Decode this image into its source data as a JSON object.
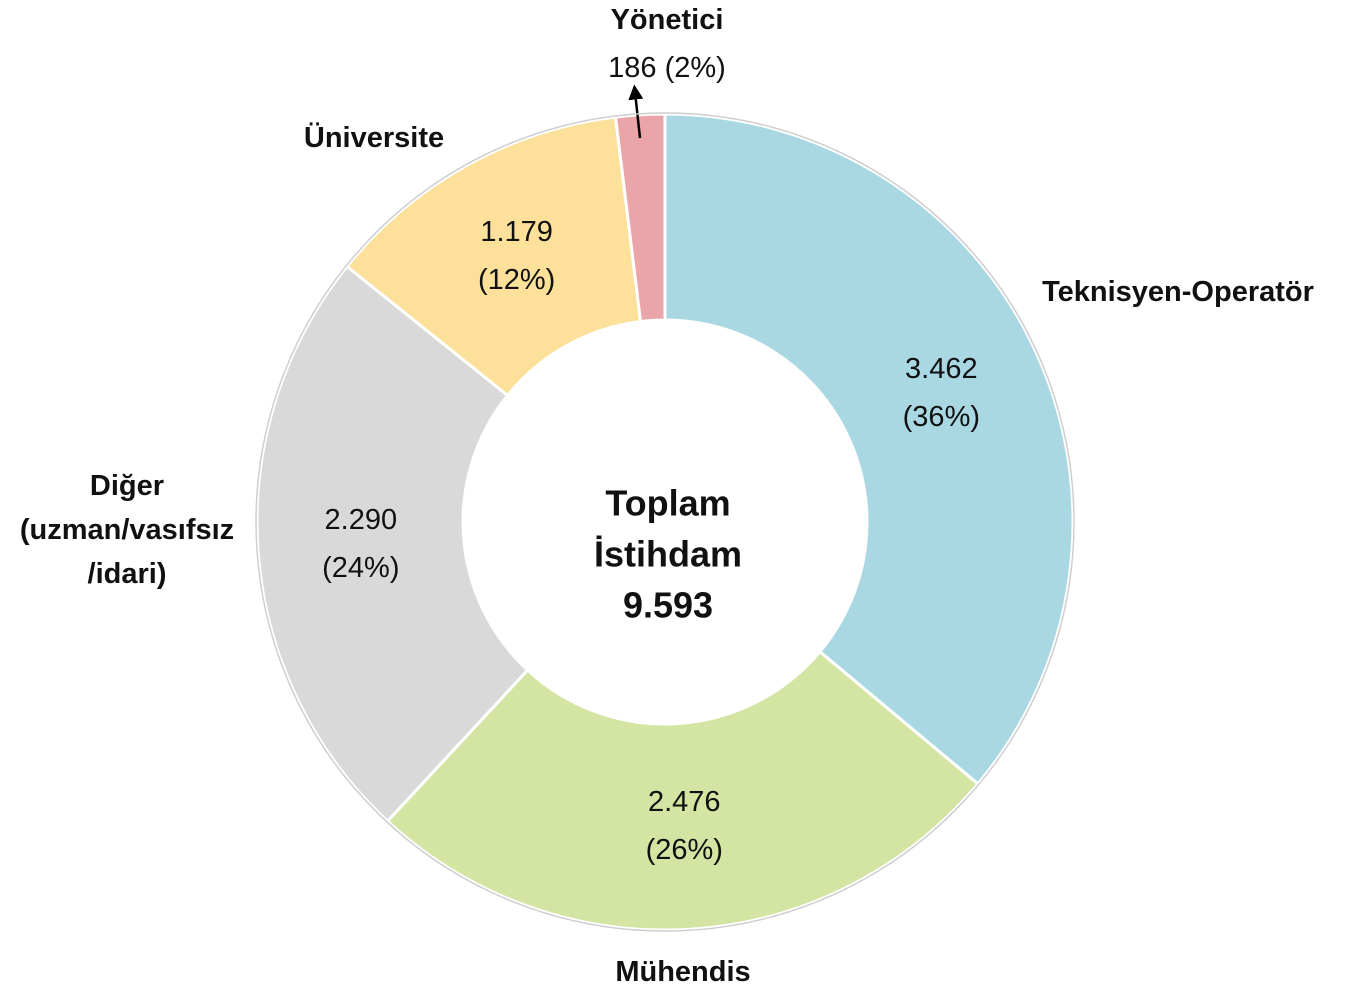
{
  "chart_data": {
    "type": "donut",
    "categories": [
      "Teknisyen-Operatör",
      "Mühendis",
      "Diğer (uzman/vasıfsız /idari)",
      "Üniversite",
      "Yönetici"
    ],
    "values": [
      3462,
      2476,
      2290,
      1179,
      186
    ],
    "value_labels": [
      "3.462",
      "2.476",
      "2.290",
      "1.179",
      "186"
    ],
    "percent_labels": [
      "(36%)",
      "(26%)",
      "(24%)",
      "(12%)",
      "(2%)"
    ],
    "colors": [
      "#a9d8e3",
      "#d3e4a3",
      "#d9d9d9",
      "#fde19a",
      "#e9a5a8"
    ],
    "center_text": [
      "Toplam",
      "İstihdam",
      "9.593"
    ]
  }
}
